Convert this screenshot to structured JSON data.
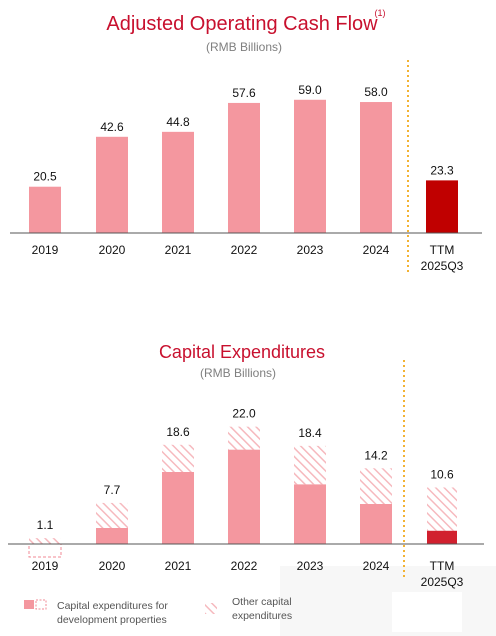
{
  "chart_data": [
    {
      "type": "bar",
      "title": "Adjusted Operating Cash Flow",
      "title_note": "(1)",
      "subtitle": "(RMB Billions)",
      "categories": [
        "2019",
        "2020",
        "2021",
        "2022",
        "2023",
        "2024",
        "TTM 2025Q3"
      ],
      "values": [
        20.5,
        42.6,
        44.8,
        57.6,
        59.0,
        58.0,
        23.3
      ],
      "value_labels": [
        "20.5",
        "42.6",
        "44.8",
        "57.6",
        "59.0",
        "58.0",
        "23.3"
      ],
      "ylim": [
        0,
        62
      ],
      "grid": false,
      "colors": {
        "annual": "#f4979f",
        "ttm": "#c00000",
        "separator": "#f2b233"
      }
    },
    {
      "type": "bar",
      "stacked": true,
      "title": "Capital Expenditures",
      "subtitle": "(RMB Billions)",
      "categories": [
        "2019",
        "2020",
        "2021",
        "2022",
        "2023",
        "2024",
        "TTM 2025Q3"
      ],
      "series": [
        {
          "name": "Capital expenditures for development properties",
          "values": [
            0.0,
            3.0,
            13.5,
            17.7,
            11.2,
            7.5,
            2.5
          ]
        },
        {
          "name": "Other capital expenditures",
          "values": [
            1.1,
            4.7,
            5.1,
            4.3,
            7.2,
            6.7,
            8.1
          ]
        }
      ],
      "totals": [
        "1.1",
        "7.7",
        "18.6",
        "22.0",
        "18.4",
        "14.2",
        "10.6"
      ],
      "ylim": [
        0,
        24
      ],
      "grid": false,
      "colors": {
        "development": "#f4979f",
        "development_ttm": "#d1202e",
        "other_hatch": "#f6b9be",
        "separator": "#f2b233"
      }
    }
  ]
}
